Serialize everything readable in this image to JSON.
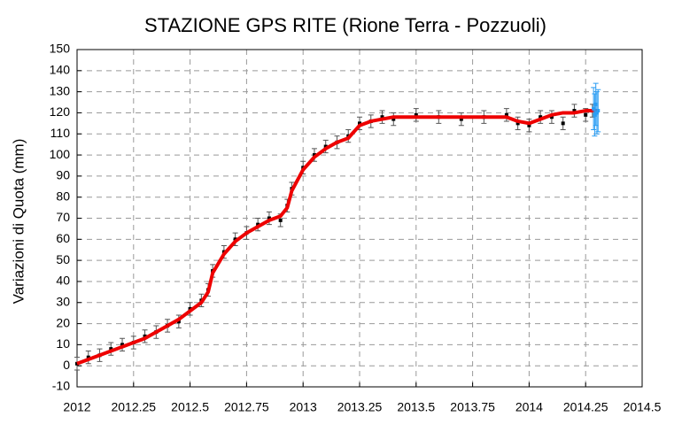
{
  "chart_data": {
    "type": "errorbar-line",
    "title": "STAZIONE GPS RITE (Rione Terra - Pozzuoli)",
    "y_label": "Variazioni di Quota (mm)",
    "xlim": [
      2012,
      2014.5
    ],
    "ylim": [
      -10,
      150
    ],
    "xticks": [
      2012,
      2012.25,
      2012.5,
      2012.75,
      2013,
      2013.25,
      2013.5,
      2013.75,
      2014,
      2014.25,
      2014.5
    ],
    "yticks": [
      -10,
      0,
      10,
      20,
      30,
      40,
      50,
      60,
      70,
      80,
      90,
      100,
      110,
      120,
      130,
      140,
      150
    ],
    "grid": true,
    "series": [
      {
        "color": "#000000",
        "error": 3,
        "x": [
          2012,
          2012.05,
          2012.1,
          2012.15,
          2012.2,
          2012.25,
          2012.3,
          2012.35,
          2012.4,
          2012.45,
          2012.5,
          2012.55,
          2012.58,
          2012.6,
          2012.65,
          2012.7,
          2012.75,
          2012.8,
          2012.85,
          2012.9,
          2012.93,
          2012.95,
          2013,
          2013.05,
          2013.1,
          2013.15,
          2013.2,
          2013.25,
          2013.3,
          2013.35,
          2013.4,
          2013.5,
          2013.6,
          2013.7,
          2013.8,
          2013.9,
          2013.95,
          2014,
          2014.05,
          2014.1,
          2014.15,
          2014.2,
          2014.25,
          2014.28
        ],
        "values": [
          1,
          4,
          5,
          8,
          10,
          11,
          14,
          16,
          19,
          21,
          27,
          31,
          36,
          45,
          54,
          60,
          63,
          67,
          70,
          69,
          76,
          84,
          94,
          100,
          104,
          106,
          109,
          115,
          116,
          118,
          117,
          119,
          118,
          117,
          118,
          119,
          115,
          114,
          118,
          118,
          115,
          121,
          119,
          121
        ]
      },
      {
        "color": "#ee0000",
        "x": [
          2012,
          2012.05,
          2012.1,
          2012.15,
          2012.2,
          2012.25,
          2012.3,
          2012.35,
          2012.4,
          2012.45,
          2012.5,
          2012.55,
          2012.58,
          2012.6,
          2012.65,
          2012.7,
          2012.75,
          2012.8,
          2012.85,
          2012.9,
          2012.93,
          2012.95,
          2013,
          2013.05,
          2013.1,
          2013.15,
          2013.2,
          2013.25,
          2013.3,
          2013.35,
          2013.4,
          2013.5,
          2013.6,
          2013.7,
          2013.8,
          2013.9,
          2013.95,
          2014,
          2014.05,
          2014.1,
          2014.15,
          2014.2,
          2014.25,
          2014.3
        ],
        "values": [
          1,
          3,
          5,
          7,
          9,
          11,
          13,
          16,
          19,
          22,
          26,
          30,
          35,
          44,
          53,
          59,
          63,
          66,
          69,
          71,
          75,
          83,
          93,
          99,
          103,
          106,
          108,
          114,
          116,
          117,
          118,
          118,
          118,
          118,
          118,
          118,
          116,
          115,
          117,
          119,
          120,
          120,
          121,
          121
        ]
      },
      {
        "color": "#2a9df4",
        "error": 10,
        "x": [
          2014.285,
          2014.29,
          2014.295,
          2014.3,
          2014.305
        ],
        "values": [
          122,
          119,
          124,
          120,
          121
        ]
      }
    ]
  }
}
